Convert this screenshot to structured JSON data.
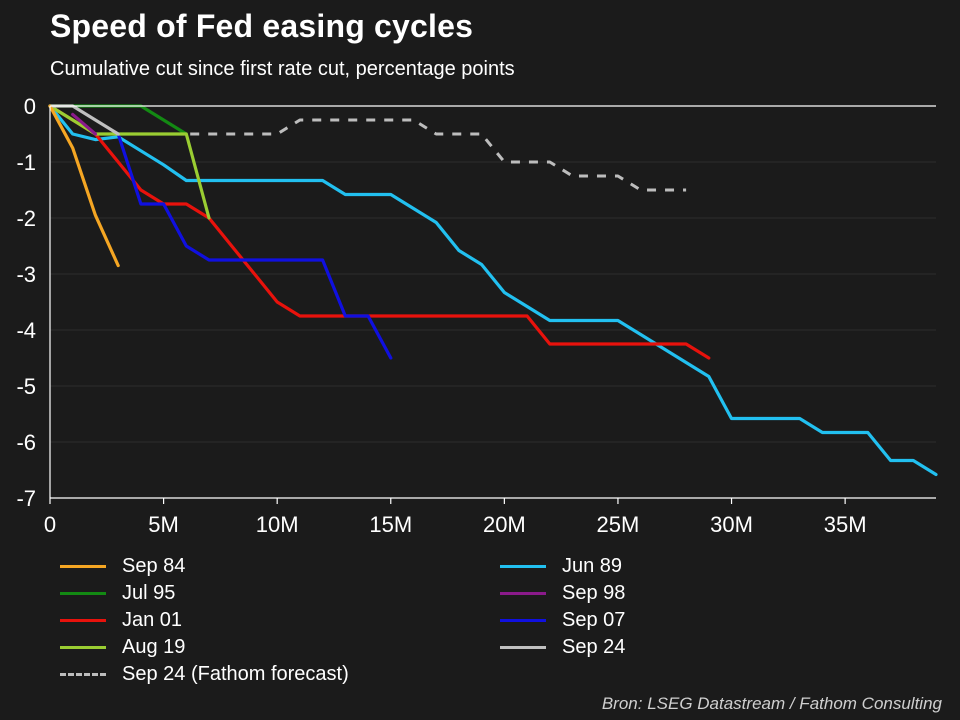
{
  "title": "Speed of Fed easing cycles",
  "subtitle": "Cumulative cut since first rate cut, percentage points",
  "source": "Bron: LSEG Datastream / Fathom Consulting",
  "chart_data": {
    "type": "line",
    "title": "Speed of Fed easing cycles",
    "subtitle": "Cumulative cut since first rate cut, percentage points",
    "xlim": [
      0,
      39
    ],
    "ylim": [
      -7,
      0
    ],
    "x_ticks": [
      0,
      5,
      10,
      15,
      20,
      25,
      30,
      35
    ],
    "x_tick_labels": [
      "0",
      "5M",
      "10M",
      "15M",
      "20M",
      "25M",
      "30M",
      "35M"
    ],
    "y_ticks": [
      0,
      -1,
      -2,
      -3,
      -4,
      -5,
      -6,
      -7
    ],
    "y_tick_labels": [
      "0",
      "-1",
      "-2",
      "-3",
      "-4",
      "-5",
      "-6",
      "-7"
    ],
    "grid": "horizontal",
    "legend_position": "bottom",
    "series": [
      {
        "name": "Sep 84",
        "color": "#f5a623",
        "dash": false,
        "points": [
          [
            0,
            0
          ],
          [
            1,
            -0.75
          ],
          [
            2,
            -1.95
          ],
          [
            3,
            -2.85
          ]
        ]
      },
      {
        "name": "Jun 89",
        "color": "#22c0f0",
        "dash": false,
        "points": [
          [
            0,
            0
          ],
          [
            1,
            -0.5
          ],
          [
            2,
            -0.6
          ],
          [
            3,
            -0.55
          ],
          [
            4,
            -0.8
          ],
          [
            5,
            -1.05
          ],
          [
            6,
            -1.33
          ],
          [
            7,
            -1.33
          ],
          [
            8,
            -1.33
          ],
          [
            9,
            -1.33
          ],
          [
            10,
            -1.33
          ],
          [
            11,
            -1.33
          ],
          [
            12,
            -1.33
          ],
          [
            13,
            -1.58
          ],
          [
            14,
            -1.58
          ],
          [
            15,
            -1.58
          ],
          [
            16,
            -1.83
          ],
          [
            17,
            -2.08
          ],
          [
            18,
            -2.58
          ],
          [
            19,
            -2.83
          ],
          [
            20,
            -3.33
          ],
          [
            21,
            -3.58
          ],
          [
            22,
            -3.83
          ],
          [
            23,
            -3.83
          ],
          [
            24,
            -3.83
          ],
          [
            25,
            -3.83
          ],
          [
            26,
            -4.08
          ],
          [
            27,
            -4.33
          ],
          [
            28,
            -4.58
          ],
          [
            29,
            -4.83
          ],
          [
            30,
            -5.58
          ],
          [
            31,
            -5.58
          ],
          [
            32,
            -5.58
          ],
          [
            33,
            -5.58
          ],
          [
            34,
            -5.83
          ],
          [
            35,
            -5.83
          ],
          [
            36,
            -5.83
          ],
          [
            37,
            -6.33
          ],
          [
            38,
            -6.33
          ],
          [
            39,
            -6.58
          ]
        ]
      },
      {
        "name": "Jul 95",
        "color": "#138a13",
        "dash": false,
        "points": [
          [
            0,
            0
          ],
          [
            1,
            0
          ],
          [
            2,
            0
          ],
          [
            3,
            0
          ],
          [
            4,
            0
          ],
          [
            5,
            -0.25
          ],
          [
            6,
            -0.5
          ]
        ]
      },
      {
        "name": "Sep 98",
        "color": "#8b1a8b",
        "dash": false,
        "points": [
          [
            1,
            -0.15
          ],
          [
            2,
            -0.5
          ]
        ]
      },
      {
        "name": "Jan 01",
        "color": "#e8120c",
        "dash": false,
        "points": [
          [
            0,
            0
          ],
          [
            1,
            -0.25
          ],
          [
            2,
            -0.5
          ],
          [
            3,
            -1
          ],
          [
            4,
            -1.5
          ],
          [
            5,
            -1.75
          ],
          [
            6,
            -1.75
          ],
          [
            7,
            -2
          ],
          [
            8,
            -2.5
          ],
          [
            9,
            -3
          ],
          [
            10,
            -3.5
          ],
          [
            11,
            -3.75
          ],
          [
            12,
            -3.75
          ],
          [
            13,
            -3.75
          ],
          [
            14,
            -3.75
          ],
          [
            15,
            -3.75
          ],
          [
            16,
            -3.75
          ],
          [
            17,
            -3.75
          ],
          [
            18,
            -3.75
          ],
          [
            19,
            -3.75
          ],
          [
            20,
            -3.75
          ],
          [
            21,
            -3.75
          ],
          [
            22,
            -4.25
          ],
          [
            23,
            -4.25
          ],
          [
            24,
            -4.25
          ],
          [
            25,
            -4.25
          ],
          [
            26,
            -4.25
          ],
          [
            27,
            -4.25
          ],
          [
            28,
            -4.25
          ],
          [
            29,
            -4.5
          ]
        ]
      },
      {
        "name": "Sep 07",
        "color": "#1010e0",
        "dash": false,
        "points": [
          [
            3,
            -0.5
          ],
          [
            4,
            -1.75
          ],
          [
            5,
            -1.75
          ],
          [
            6,
            -2.5
          ],
          [
            7,
            -2.75
          ],
          [
            8,
            -2.75
          ],
          [
            9,
            -2.75
          ],
          [
            10,
            -2.75
          ],
          [
            11,
            -2.75
          ],
          [
            12,
            -2.75
          ],
          [
            13,
            -3.75
          ],
          [
            14,
            -3.75
          ],
          [
            15,
            -4.5
          ]
        ]
      },
      {
        "name": "Aug 19",
        "color": "#9acd32",
        "dash": false,
        "points": [
          [
            0,
            0
          ],
          [
            1,
            -0.25
          ],
          [
            2,
            -0.5
          ],
          [
            3,
            -0.5
          ],
          [
            4,
            -0.5
          ],
          [
            5,
            -0.5
          ],
          [
            6,
            -0.5
          ],
          [
            7,
            -2
          ]
        ]
      },
      {
        "name": "Sep 24",
        "color": "#c0c0c0",
        "dash": false,
        "points": [
          [
            0,
            0
          ],
          [
            1,
            0
          ],
          [
            2,
            -0.25
          ],
          [
            3,
            -0.5
          ]
        ]
      },
      {
        "name": "Sep 24 (Fathom forecast)",
        "color": "#bdbdbd",
        "dash": true,
        "points": [
          [
            3,
            -0.5
          ],
          [
            4,
            -0.5
          ],
          [
            5,
            -0.5
          ],
          [
            6,
            -0.5
          ],
          [
            7,
            -0.5
          ],
          [
            8,
            -0.5
          ],
          [
            9,
            -0.5
          ],
          [
            10,
            -0.5
          ],
          [
            11,
            -0.25
          ],
          [
            12,
            -0.25
          ],
          [
            13,
            -0.25
          ],
          [
            14,
            -0.25
          ],
          [
            15,
            -0.25
          ],
          [
            16,
            -0.25
          ],
          [
            17,
            -0.5
          ],
          [
            18,
            -0.5
          ],
          [
            19,
            -0.5
          ],
          [
            20,
            -1
          ],
          [
            21,
            -1
          ],
          [
            22,
            -1
          ],
          [
            23,
            -1.25
          ],
          [
            24,
            -1.25
          ],
          [
            25,
            -1.25
          ],
          [
            26,
            -1.5
          ],
          [
            27,
            -1.5
          ],
          [
            28,
            -1.5
          ]
        ]
      }
    ]
  }
}
